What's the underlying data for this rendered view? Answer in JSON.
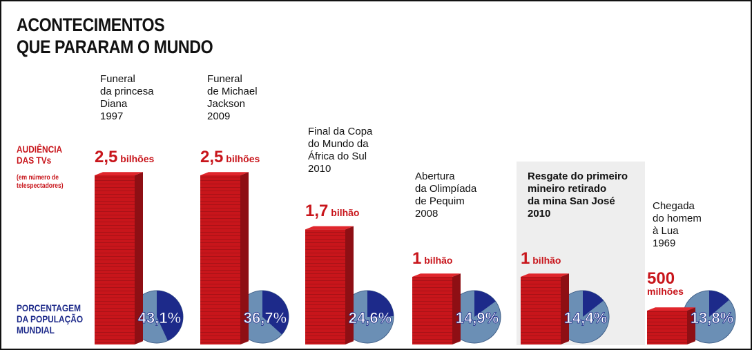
{
  "title": [
    "ACONTECIMENTOS",
    "QUE PARARAM O MUNDO"
  ],
  "audience_label": [
    "AUDIÊNCIA",
    "DAS TVs"
  ],
  "audience_note": [
    "(em número de",
    "telespectadores)"
  ],
  "population_label": [
    "PORCENTAGEM",
    "DA POPULAÇÃO",
    "MUNDIAL"
  ],
  "colors": {
    "bar": "#c8151b",
    "globe": "#6b8fb5",
    "slice": "#1d2a8a",
    "label_red": "#c8151b"
  },
  "chart_data": {
    "type": "bar",
    "categories": [
      "Funeral da princesa Diana 1997",
      "Funeral de Michael Jackson 2009",
      "Final da Copa do Mundo da África do Sul 2010",
      "Abertura da Olimpíada de Pequim 2008",
      "Resgate do primeiro mineiro retirado da mina San José 2010",
      "Chegada do homem à Lua 1969"
    ],
    "series": [
      {
        "name": "AUDIÊNCIA DAS TVs",
        "values": [
          2500000000,
          2500000000,
          1700000000,
          1000000000,
          1000000000,
          500000000
        ]
      },
      {
        "name": "PORCENTAGEM DA POPULAÇÃO MUNDIAL",
        "values": [
          43.1,
          36.7,
          24.6,
          14.9,
          14.4,
          13.8
        ]
      }
    ],
    "events": [
      {
        "name": "Funeral\nda princesa\nDiana",
        "year": "1997",
        "value_num": "2,5",
        "value_unit": "bilhões",
        "audience": 2.5,
        "percent": 43.1,
        "percent_label": "43,1%",
        "bold": false
      },
      {
        "name": "Funeral\nde Michael\nJackson",
        "year": "2009",
        "value_num": "2,5",
        "value_unit": "bilhões",
        "audience": 2.5,
        "percent": 36.7,
        "percent_label": "36,7%",
        "bold": false
      },
      {
        "name": "Final da Copa\ndo Mundo da\nÁfrica do Sul",
        "year": "2010",
        "value_num": "1,7",
        "value_unit": "bilhão",
        "audience": 1.7,
        "percent": 24.6,
        "percent_label": "24,6%",
        "bold": false
      },
      {
        "name": "Abertura\nda Olimpíada\nde Pequim",
        "year": "2008",
        "value_num": "1",
        "value_unit": "bilhão",
        "audience": 1.0,
        "percent": 14.9,
        "percent_label": "14,9%",
        "bold": false
      },
      {
        "name": "Resgate do primeiro\nmineiro retirado\nda mina San José",
        "year": "2010",
        "value_num": "1",
        "value_unit": "bilhão",
        "audience": 1.0,
        "percent": 14.4,
        "percent_label": "14,4%",
        "bold": true
      },
      {
        "name": "Chegada\ndo homem\nà Lua",
        "year": "1969",
        "value_num": "500",
        "value_unit": "milhões",
        "audience": 0.5,
        "percent": 13.8,
        "percent_label": "13,8%",
        "bold": false
      }
    ]
  }
}
